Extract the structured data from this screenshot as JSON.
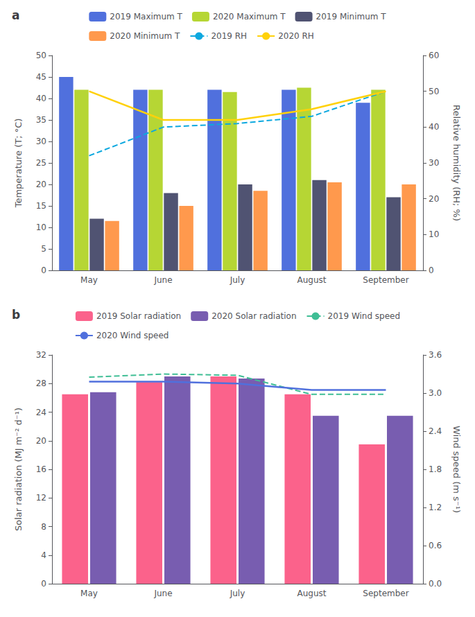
{
  "chart_data": [
    {
      "type": "bar",
      "title": "a",
      "categories": [
        "May",
        "June",
        "July",
        "August",
        "September"
      ],
      "ylabel": "Temperature (T; °C)",
      "y2label": "Relative humidity (RH; %)",
      "ylim": [
        0,
        50
      ],
      "yticks": [
        0,
        5,
        10,
        15,
        20,
        25,
        30,
        35,
        40,
        45,
        50
      ],
      "y2lim": [
        0,
        60
      ],
      "y2ticks": [
        0,
        10,
        20,
        30,
        40,
        50,
        60
      ],
      "grid": false,
      "legend": "top",
      "series": [
        {
          "name": "2019 Maximum T",
          "type": "bar",
          "values": [
            45,
            42,
            42,
            42,
            39
          ]
        },
        {
          "name": "2020 Maximum T",
          "type": "bar",
          "values": [
            42,
            42,
            41.5,
            42.5,
            42
          ]
        },
        {
          "name": "2019 Minimum T",
          "type": "bar",
          "values": [
            12,
            18,
            20,
            21,
            17
          ]
        },
        {
          "name": "2020 Minimum T",
          "type": "bar",
          "values": [
            11.5,
            15,
            18.5,
            20.5,
            20
          ]
        },
        {
          "name": "2019 RH",
          "type": "line",
          "axis": "y2",
          "line_style": "dashed",
          "values": [
            32,
            40,
            41,
            43,
            50
          ]
        },
        {
          "name": "2020 RH",
          "type": "line",
          "axis": "y2",
          "line_style": "solid",
          "values": [
            50,
            42,
            42,
            45,
            50
          ]
        }
      ]
    },
    {
      "type": "bar",
      "title": "b",
      "categories": [
        "May",
        "June",
        "July",
        "August",
        "September"
      ],
      "ylabel": "Solar radiation (MJ m⁻² d⁻¹)",
      "y2label": "Wind speed (m s⁻¹)",
      "ylim": [
        0,
        32
      ],
      "yticks": [
        0,
        4,
        8,
        12,
        16,
        20,
        24,
        28,
        32
      ],
      "y2lim": [
        0,
        3.6
      ],
      "y2ticks": [
        {
          "value": 0,
          "label": "0.0"
        },
        0.6,
        1.2,
        1.8,
        2.4,
        {
          "value": 3,
          "label": "3.0"
        },
        3.6
      ],
      "grid": false,
      "legend": "top",
      "series": [
        {
          "name": "2019 Solar radiation",
          "type": "bar",
          "values": [
            26.5,
            28.2,
            29.0,
            26.5,
            19.5
          ]
        },
        {
          "name": "2020 Solar radiation",
          "type": "bar",
          "values": [
            26.8,
            29.0,
            28.7,
            23.5,
            23.5
          ]
        },
        {
          "name": "2019 Wind speed",
          "type": "line",
          "axis": "y2",
          "line_style": "dashed",
          "values": [
            3.25,
            3.3,
            3.28,
            2.98,
            2.98
          ]
        },
        {
          "name": "2020 Wind speed",
          "type": "line",
          "axis": "y2",
          "line_style": "solid",
          "values": [
            3.18,
            3.18,
            3.15,
            3.05,
            3.05
          ]
        }
      ]
    }
  ]
}
